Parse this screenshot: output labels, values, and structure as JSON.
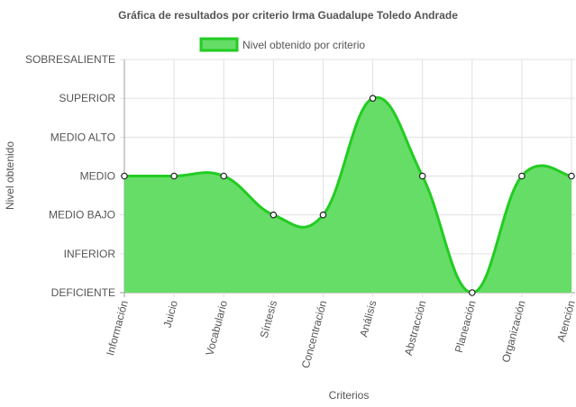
{
  "chart_data": {
    "type": "area",
    "title": "Gráfica de resultados por criterio Irma Guadalupe Toledo Andrade",
    "xlabel": "Criterios",
    "ylabel": "Nivel obtenido",
    "y_levels": [
      "DEFICIENTE",
      "INFERIOR",
      "MEDIO BAJO",
      "MEDIO",
      "MEDIO ALTO",
      "SUPERIOR",
      "SOBRESALIENTE"
    ],
    "ylim": [
      0,
      6
    ],
    "categories": [
      "Información",
      "Juicio",
      "Vocabulario",
      "Síntesis",
      "Concentración",
      "Análisis",
      "Abstracción",
      "Planeación",
      "Organización",
      "Atención"
    ],
    "series": [
      {
        "name": "Nivel obtenido por criterio",
        "values": [
          3,
          3,
          3,
          2,
          2,
          5,
          3,
          0,
          3,
          3
        ]
      }
    ],
    "grid": true,
    "legend_position": "top",
    "colors": {
      "fill": "#66dd66",
      "stroke": "#22cc22",
      "grid": "#e0e0e0",
      "axis": "#9e9e9e"
    }
  }
}
